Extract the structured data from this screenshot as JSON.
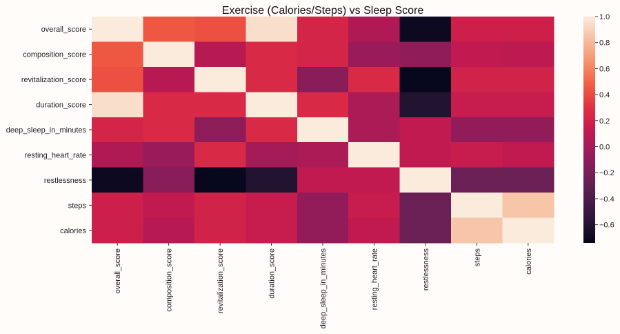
{
  "chart_data": {
    "type": "heatmap",
    "title": "Exercise (Calories/Steps) vs Sleep Score",
    "xlabel": "",
    "ylabel": "",
    "rows": [
      "overall_score",
      "composition_score",
      "revitalization_score",
      "duration_score",
      "deep_sleep_in_minutes",
      "resting_heart_rate",
      "restlessness",
      "steps",
      "calories"
    ],
    "columns": [
      "overall_score",
      "composition_score",
      "revitalization_score",
      "duration_score",
      "deep_sleep_in_minutes",
      "resting_heart_rate",
      "restlessness",
      "steps",
      "calories"
    ],
    "values": [
      [
        1.0,
        0.45,
        0.42,
        0.95,
        0.22,
        0.05,
        -0.7,
        0.18,
        0.18
      ],
      [
        0.45,
        1.0,
        0.08,
        0.25,
        0.22,
        -0.05,
        -0.1,
        0.12,
        0.1
      ],
      [
        0.42,
        0.08,
        1.0,
        0.25,
        -0.12,
        0.25,
        -0.72,
        0.2,
        0.2
      ],
      [
        0.95,
        0.25,
        0.25,
        1.0,
        0.25,
        0.03,
        -0.6,
        0.15,
        0.15
      ],
      [
        0.22,
        0.25,
        -0.1,
        0.25,
        1.0,
        0.03,
        0.12,
        -0.08,
        -0.08
      ],
      [
        0.05,
        -0.05,
        0.25,
        0.0,
        0.03,
        1.0,
        0.12,
        0.15,
        0.12
      ],
      [
        -0.7,
        -0.12,
        -0.72,
        -0.6,
        0.12,
        0.12,
        1.0,
        -0.25,
        -0.25
      ],
      [
        0.18,
        0.12,
        0.2,
        0.15,
        -0.08,
        0.15,
        -0.25,
        1.0,
        0.85
      ],
      [
        0.18,
        0.08,
        0.2,
        0.15,
        -0.08,
        0.12,
        -0.25,
        0.85,
        1.0
      ]
    ],
    "colorbar": {
      "ticks": [
        "1.0",
        "0.8",
        "0.6",
        "0.4",
        "0.2",
        "0.0",
        "−0.2",
        "−0.4",
        "−0.6"
      ],
      "min": -0.74,
      "max": 1.0
    },
    "colormap": "rocket",
    "grid": false,
    "legend": "colorbar-right"
  }
}
